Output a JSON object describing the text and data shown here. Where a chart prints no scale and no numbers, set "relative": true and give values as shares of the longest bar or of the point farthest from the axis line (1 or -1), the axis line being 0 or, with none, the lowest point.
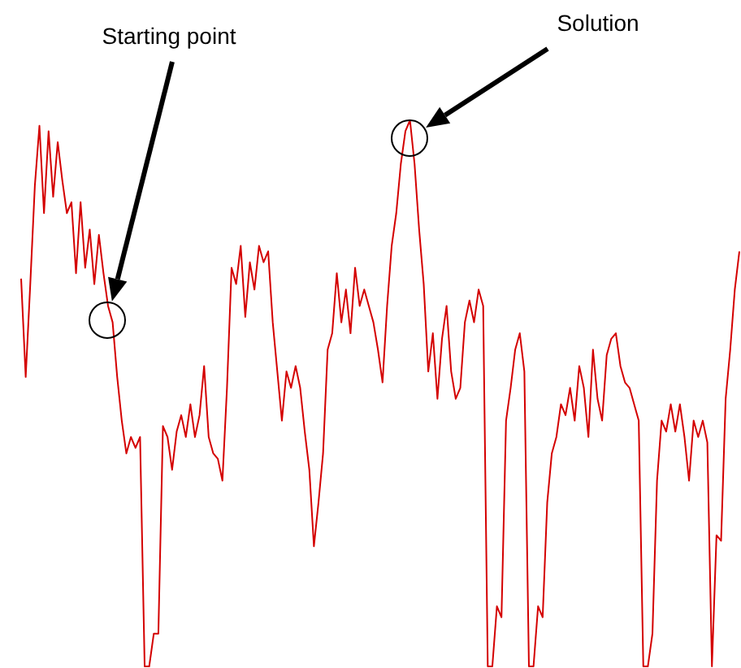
{
  "chart_data": {
    "type": "line",
    "relative": true,
    "color": "#d40000",
    "marker": "none",
    "line_style": "solid",
    "annotations": [
      "Starting point",
      "Solution"
    ],
    "categories": [
      null,
      null,
      null,
      null,
      null,
      null,
      null,
      null,
      null,
      null,
      null,
      null,
      null,
      null,
      null,
      null,
      null,
      null,
      null,
      null,
      null,
      null,
      null,
      null,
      null,
      null,
      null,
      null,
      null,
      null,
      null,
      null,
      null,
      null,
      null,
      null,
      null,
      null,
      null,
      null,
      null,
      null,
      null,
      null,
      null,
      null,
      null,
      null,
      null,
      null,
      null,
      null,
      null,
      null,
      null,
      null,
      null,
      null,
      null,
      null,
      null,
      null,
      null,
      null,
      null,
      null,
      null,
      null,
      null,
      null,
      null,
      null,
      null,
      null,
      null,
      null,
      null,
      null,
      null,
      null,
      null,
      null,
      null,
      null,
      null,
      null,
      null,
      null,
      null,
      null,
      null,
      null,
      null,
      null,
      null,
      null,
      null,
      null,
      null,
      null,
      null,
      null,
      null,
      null,
      null,
      null,
      null,
      null,
      null,
      null,
      null,
      null,
      null,
      null,
      null,
      null,
      null,
      null,
      null,
      null,
      null,
      null,
      null,
      null,
      null,
      null,
      null,
      null,
      null,
      null,
      null,
      null,
      null,
      null,
      null,
      null,
      null,
      null,
      null,
      null,
      null,
      null,
      null,
      null,
      null,
      null,
      null,
      null,
      null,
      null,
      null,
      null,
      null,
      null,
      null,
      null,
      null,
      null
    ],
    "values": [
      0.71,
      0.53,
      0.7,
      0.88,
      0.99,
      0.83,
      0.98,
      0.86,
      0.96,
      0.89,
      0.83,
      0.85,
      0.72,
      0.85,
      0.73,
      0.8,
      0.7,
      0.79,
      0.72,
      0.66,
      0.63,
      0.53,
      0.45,
      0.39,
      0.42,
      0.4,
      0.42,
      0,
      0,
      0.06,
      0.06,
      0.44,
      0.42,
      0.36,
      0.43,
      0.46,
      0.42,
      0.48,
      0.42,
      0.46,
      0.55,
      0.42,
      0.39,
      0.38,
      0.34,
      0.51,
      0.73,
      0.7,
      0.77,
      0.64,
      0.74,
      0.69,
      0.77,
      0.74,
      0.76,
      0.63,
      0.54,
      0.45,
      0.54,
      0.51,
      0.55,
      0.51,
      0.43,
      0.36,
      0.22,
      0.3,
      0.39,
      0.58,
      0.61,
      0.72,
      0.63,
      0.69,
      0.61,
      0.73,
      0.66,
      0.69,
      0.66,
      0.63,
      0.58,
      0.52,
      0.66,
      0.77,
      0.83,
      0.92,
      0.98,
      1,
      0.92,
      0.8,
      0.7,
      0.54,
      0.61,
      0.49,
      0.6,
      0.66,
      0.54,
      0.49,
      0.51,
      0.63,
      0.67,
      0.63,
      0.69,
      0.66,
      0,
      0,
      0.11,
      0.09,
      0.45,
      0.51,
      0.58,
      0.61,
      0.54,
      0,
      0,
      0.11,
      0.09,
      0.3,
      0.39,
      0.42,
      0.48,
      0.46,
      0.51,
      0.45,
      0.55,
      0.51,
      0.42,
      0.58,
      0.49,
      0.45,
      0.57,
      0.6,
      0.61,
      0.55,
      0.52,
      0.51,
      0.48,
      0.45,
      0,
      0,
      0.06,
      0.34,
      0.45,
      0.43,
      0.48,
      0.43,
      0.48,
      0.42,
      0.34,
      0.45,
      0.42,
      0.45,
      0.41,
      0,
      0.24,
      0.23,
      0.49,
      0.58,
      0.69,
      0.76
    ]
  }
}
